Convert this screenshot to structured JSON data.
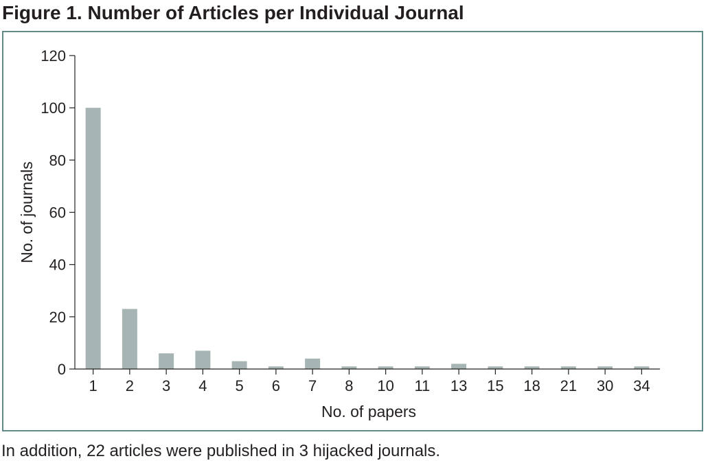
{
  "figure": {
    "title": "Figure 1. Number of Articles per Individual Journal",
    "footnote": "In addition, 22 articles were published in 3 hijacked journals."
  },
  "colors": {
    "bar": "#a6b5b4",
    "frame": "#5e8a87",
    "axis": "#231f20"
  },
  "chart_data": {
    "type": "bar",
    "title": "Figure 1. Number of Articles per Individual Journal",
    "xlabel": "No. of papers",
    "ylabel": "No. of journals",
    "categories": [
      "1",
      "2",
      "3",
      "4",
      "5",
      "6",
      "7",
      "8",
      "10",
      "11",
      "13",
      "15",
      "18",
      "21",
      "30",
      "34"
    ],
    "values": [
      100,
      23,
      6,
      7,
      3,
      1,
      4,
      1,
      1,
      1,
      2,
      1,
      1,
      1,
      1,
      1
    ],
    "ylim": [
      0,
      120
    ],
    "yticks": [
      0,
      20,
      40,
      60,
      80,
      100,
      120
    ],
    "grid": false,
    "legend": "none"
  }
}
